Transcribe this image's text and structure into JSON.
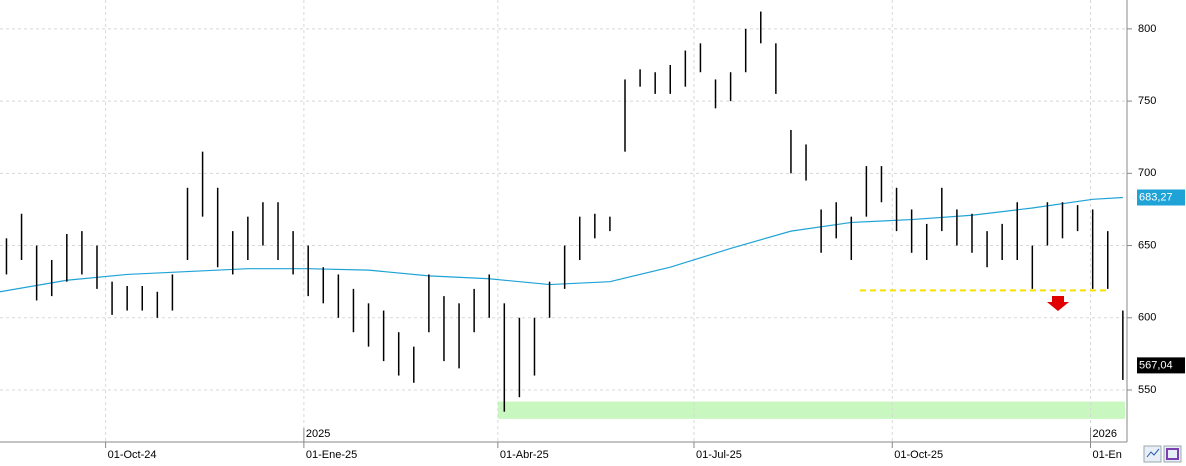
{
  "chart_data": {
    "type": "ohlc",
    "xlim": [
      "2024-08-13",
      "2026-01-17"
    ],
    "ylim": [
      514,
      820
    ],
    "yticks": [
      550,
      600,
      650,
      700,
      750,
      800
    ],
    "xticks": [
      {
        "value": "2024-10-01",
        "label": "01-Oct-24"
      },
      {
        "value": "2025-01-01",
        "label": "01-Ene-25"
      },
      {
        "value": "2025-04-01",
        "label": "01-Abr-25"
      },
      {
        "value": "2025-07-01",
        "label": "01-Jul-25"
      },
      {
        "value": "2025-10-01",
        "label": "01-Oct-25"
      },
      {
        "value": "2026-01-01",
        "label": "01-En"
      }
    ],
    "year_ticks": [
      {
        "value": "2025-01-01",
        "label": "2025"
      },
      {
        "value": "2026-01-01",
        "label": "2026"
      }
    ],
    "grid": true,
    "color": "#000000",
    "x": [
      "2024-08-16",
      "2024-08-23",
      "2024-08-30",
      "2024-09-06",
      "2024-09-13",
      "2024-09-20",
      "2024-09-27",
      "2024-10-04",
      "2024-10-11",
      "2024-10-18",
      "2024-10-25",
      "2024-11-01",
      "2024-11-08",
      "2024-11-15",
      "2024-11-22",
      "2024-11-29",
      "2024-12-06",
      "2024-12-13",
      "2024-12-20",
      "2024-12-27",
      "2025-01-03",
      "2025-01-10",
      "2025-01-17",
      "2025-01-24",
      "2025-01-31",
      "2025-02-07",
      "2025-02-14",
      "2025-02-21",
      "2025-02-28",
      "2025-03-07",
      "2025-03-14",
      "2025-03-21",
      "2025-03-28",
      "2025-04-04",
      "2025-04-11",
      "2025-04-18",
      "2025-04-25",
      "2025-05-02",
      "2025-05-09",
      "2025-05-16",
      "2025-05-23",
      "2025-05-30",
      "2025-06-06",
      "2025-06-13",
      "2025-06-20",
      "2025-06-27",
      "2025-07-04",
      "2025-07-11",
      "2025-07-18",
      "2025-07-25",
      "2025-08-01",
      "2025-08-08",
      "2025-08-15",
      "2025-08-22",
      "2025-08-29",
      "2025-09-05",
      "2025-09-12",
      "2025-09-19",
      "2025-09-26",
      "2025-10-03",
      "2025-10-10",
      "2025-10-17",
      "2025-10-24",
      "2025-10-31",
      "2025-11-07",
      "2025-11-14",
      "2025-11-21",
      "2025-11-28",
      "2025-12-05",
      "2025-12-12",
      "2025-12-19",
      "2025-12-26",
      "2026-01-02",
      "2026-01-09",
      "2026-01-16"
    ],
    "high": [
      655,
      672,
      650,
      640,
      658,
      660,
      650,
      625,
      622,
      622,
      618,
      630,
      690,
      715,
      690,
      660,
      670,
      680,
      680,
      660,
      650,
      635,
      630,
      620,
      610,
      605,
      590,
      580,
      630,
      615,
      610,
      620,
      630,
      610,
      600,
      600,
      625,
      650,
      670,
      672,
      670,
      765,
      772,
      770,
      775,
      785,
      790,
      765,
      770,
      800,
      812,
      790,
      730,
      720,
      675,
      680,
      670,
      705,
      705,
      690,
      675,
      665,
      690,
      675,
      672,
      660,
      665,
      680,
      650,
      680,
      680,
      678,
      675,
      660,
      605
    ],
    "low": [
      630,
      640,
      612,
      615,
      625,
      630,
      620,
      602,
      605,
      605,
      600,
      605,
      640,
      670,
      635,
      630,
      640,
      650,
      640,
      630,
      615,
      610,
      600,
      590,
      580,
      570,
      560,
      555,
      590,
      570,
      565,
      590,
      600,
      535,
      545,
      560,
      600,
      620,
      640,
      655,
      660,
      715,
      760,
      755,
      755,
      760,
      770,
      745,
      750,
      770,
      790,
      755,
      700,
      695,
      645,
      655,
      640,
      670,
      680,
      660,
      645,
      640,
      660,
      650,
      645,
      635,
      640,
      640,
      620,
      650,
      655,
      660,
      620,
      620,
      557
    ],
    "last": {
      "value": 567.04,
      "value_label": "567,04",
      "color": "#000000"
    },
    "moving_average": {
      "color": "#1fa3d6",
      "x": [
        "2024-08-13",
        "2024-09-13",
        "2024-10-11",
        "2024-11-08",
        "2024-12-06",
        "2025-01-03",
        "2025-01-31",
        "2025-02-28",
        "2025-03-28",
        "2025-04-25",
        "2025-05-23",
        "2025-06-20",
        "2025-07-18",
        "2025-08-15",
        "2025-09-12",
        "2025-10-10",
        "2025-11-07",
        "2025-12-05",
        "2026-01-02",
        "2026-01-16"
      ],
      "values": [
        618,
        626,
        630,
        632,
        634,
        634,
        633,
        629,
        627,
        623,
        625,
        635,
        648,
        660,
        666,
        668,
        671,
        676,
        682,
        683.27
      ],
      "value_label": "683,27"
    },
    "support_line": {
      "value": 619,
      "xlim": [
        "2025-09-16",
        "2026-01-10"
      ],
      "color": "#f5e000"
    },
    "support_zone": {
      "ylim": [
        530,
        542
      ],
      "xlim": [
        "2025-04-01",
        "2026-01-17"
      ],
      "color": "#c8f7c0"
    }
  }
}
